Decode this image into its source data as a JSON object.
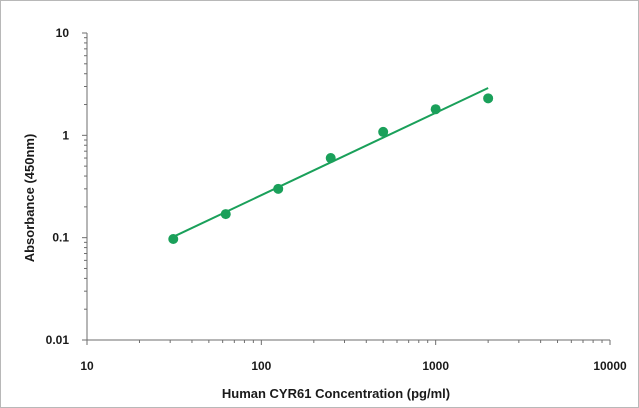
{
  "chart_data": {
    "type": "scatter",
    "title": "",
    "xlabel": "Human CYR61 Concentration (pg/ml)",
    "ylabel": "Absorbance (450nm)",
    "x_scale": "log",
    "y_scale": "log",
    "xlim": [
      10,
      10000
    ],
    "ylim": [
      0.01,
      10
    ],
    "x_ticks": [
      "10",
      "100",
      "1000",
      "10000"
    ],
    "y_ticks": [
      "10",
      "1",
      "0.1",
      "0.01"
    ],
    "grid": false,
    "legend": "none",
    "marker_color": "#1aa05a",
    "line_color": "#1aa05a",
    "points": [
      {
        "x": 31.25,
        "y": 0.097
      },
      {
        "x": 62.5,
        "y": 0.17
      },
      {
        "x": 125,
        "y": 0.3
      },
      {
        "x": 250,
        "y": 0.6
      },
      {
        "x": 500,
        "y": 1.08
      },
      {
        "x": 1000,
        "y": 1.8
      },
      {
        "x": 2000,
        "y": 2.3
      }
    ],
    "fit_line": [
      {
        "x": 31.25,
        "y": 0.102
      },
      {
        "x": 2000,
        "y": 2.9
      }
    ]
  }
}
